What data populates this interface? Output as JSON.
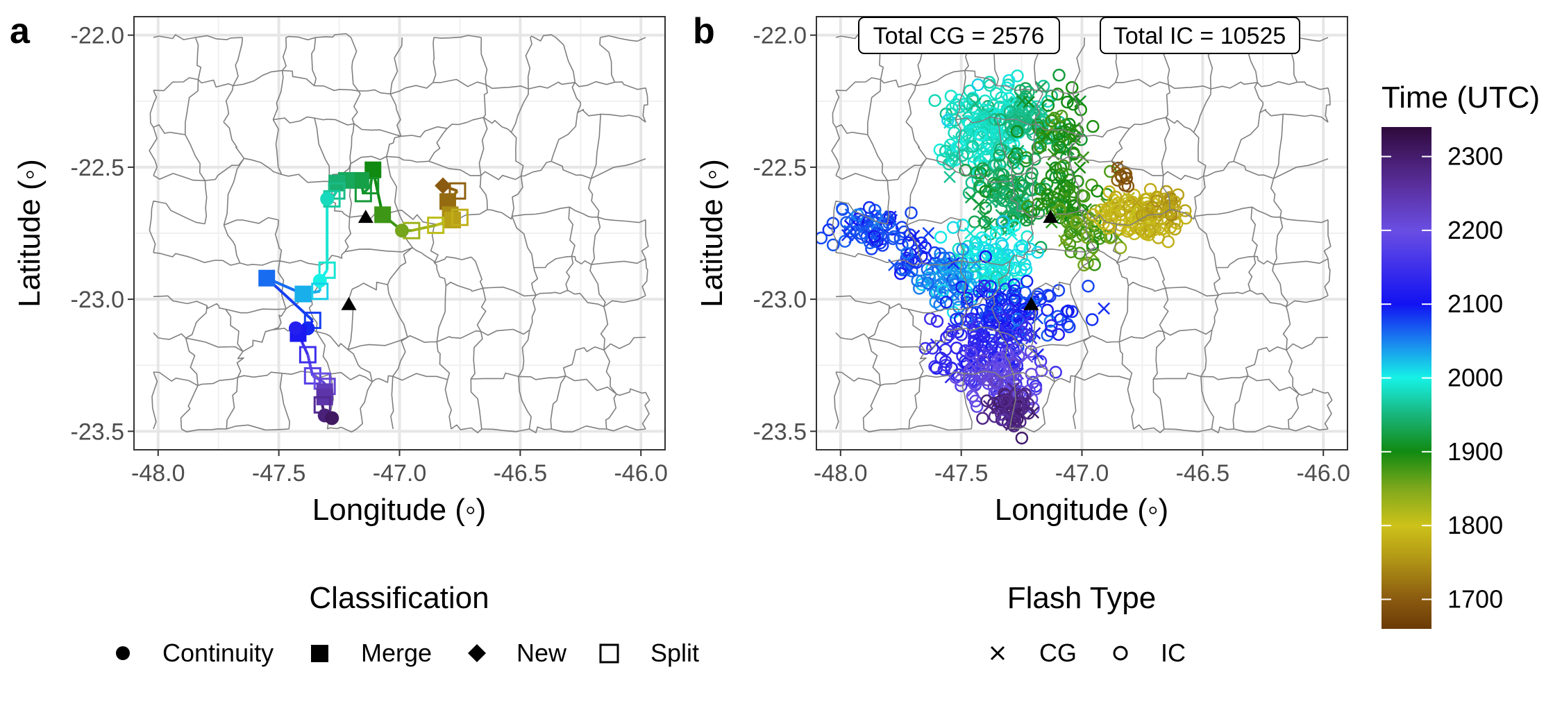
{
  "figure": {
    "panel_a_label": "a",
    "panel_b_label": "b"
  },
  "chart_data": [
    {
      "panel": "a",
      "type": "scatter",
      "xlabel": "Longitude (◦)",
      "ylabel": "Latitude (◦)",
      "xlim": [
        -48.1,
        -45.9
      ],
      "ylim": [
        -23.57,
        -21.93
      ],
      "xticks": [
        -48.0,
        -47.5,
        -47.0,
        -46.5,
        -46.0
      ],
      "yticks": [
        -22.0,
        -22.5,
        -23.0,
        -23.5
      ],
      "xtick_labels": [
        "-48.0",
        "-47.5",
        "-47.0",
        "-46.5",
        "-46.0"
      ],
      "ytick_labels": [
        "-22.0",
        "-22.5",
        "-23.0",
        "-23.5"
      ],
      "grid": true,
      "track_points": [
        {
          "lon": -46.82,
          "lat": -22.57,
          "time": 1700,
          "cls": "New"
        },
        {
          "lon": -46.76,
          "lat": -22.59,
          "time": 1705,
          "cls": "Split"
        },
        {
          "lon": -46.8,
          "lat": -22.63,
          "time": 1715,
          "cls": "Merge"
        },
        {
          "lon": -46.79,
          "lat": -22.68,
          "time": 1745,
          "cls": "Merge"
        },
        {
          "lon": -46.78,
          "lat": -22.7,
          "time": 1765,
          "cls": "Merge"
        },
        {
          "lon": -46.75,
          "lat": -22.69,
          "time": 1780,
          "cls": "Split"
        },
        {
          "lon": -46.85,
          "lat": -22.72,
          "time": 1810,
          "cls": "Split"
        },
        {
          "lon": -46.95,
          "lat": -22.74,
          "time": 1830,
          "cls": "Split"
        },
        {
          "lon": -46.99,
          "lat": -22.74,
          "time": 1855,
          "cls": "Continuity"
        },
        {
          "lon": -47.07,
          "lat": -22.68,
          "time": 1880,
          "cls": "Merge"
        },
        {
          "lon": -47.11,
          "lat": -22.51,
          "time": 1900,
          "cls": "Merge"
        },
        {
          "lon": -47.12,
          "lat": -22.57,
          "time": 1910,
          "cls": "Split"
        },
        {
          "lon": -47.15,
          "lat": -22.6,
          "time": 1918,
          "cls": "Split"
        },
        {
          "lon": -47.16,
          "lat": -22.55,
          "time": 1925,
          "cls": "Merge"
        },
        {
          "lon": -47.22,
          "lat": -22.55,
          "time": 1935,
          "cls": "Merge"
        },
        {
          "lon": -47.26,
          "lat": -22.56,
          "time": 1945,
          "cls": "Merge"
        },
        {
          "lon": -47.26,
          "lat": -22.59,
          "time": 1955,
          "cls": "Split"
        },
        {
          "lon": -47.28,
          "lat": -22.62,
          "time": 1968,
          "cls": "Split"
        },
        {
          "lon": -47.3,
          "lat": -22.62,
          "time": 1980,
          "cls": "Continuity"
        },
        {
          "lon": -47.3,
          "lat": -22.89,
          "time": 1990,
          "cls": "Split"
        },
        {
          "lon": -47.33,
          "lat": -22.93,
          "time": 2000,
          "cls": "Continuity"
        },
        {
          "lon": -47.33,
          "lat": -22.97,
          "time": 2015,
          "cls": "Split"
        },
        {
          "lon": -47.4,
          "lat": -22.98,
          "time": 2030,
          "cls": "Merge"
        },
        {
          "lon": -47.55,
          "lat": -22.92,
          "time": 2060,
          "cls": "Merge"
        },
        {
          "lon": -47.36,
          "lat": -23.08,
          "time": 2080,
          "cls": "Split"
        },
        {
          "lon": -47.38,
          "lat": -23.11,
          "time": 2090,
          "cls": "Continuity"
        },
        {
          "lon": -47.42,
          "lat": -23.13,
          "time": 2110,
          "cls": "Merge"
        },
        {
          "lon": -47.43,
          "lat": -23.11,
          "time": 2120,
          "cls": "Continuity"
        },
        {
          "lon": -47.38,
          "lat": -23.21,
          "time": 2150,
          "cls": "Split"
        },
        {
          "lon": -47.36,
          "lat": -23.29,
          "time": 2180,
          "cls": "Split"
        },
        {
          "lon": -47.32,
          "lat": -23.31,
          "time": 2200,
          "cls": "Split"
        },
        {
          "lon": -47.3,
          "lat": -23.33,
          "time": 2215,
          "cls": "Split"
        },
        {
          "lon": -47.31,
          "lat": -23.35,
          "time": 2235,
          "cls": "Merge"
        },
        {
          "lon": -47.31,
          "lat": -23.37,
          "time": 2250,
          "cls": "Merge"
        },
        {
          "lon": -47.32,
          "lat": -23.4,
          "time": 2270,
          "cls": "Split"
        },
        {
          "lon": -47.31,
          "lat": -23.44,
          "time": 2290,
          "cls": "Continuity"
        },
        {
          "lon": -47.28,
          "lat": -23.45,
          "time": 2310,
          "cls": "Continuity"
        }
      ],
      "stations": [
        {
          "lon": -47.14,
          "lat": -22.69
        },
        {
          "lon": -47.21,
          "lat": -23.02
        }
      ],
      "legend": {
        "title": "Classification",
        "entries": [
          "Continuity",
          "Merge",
          "New",
          "Split"
        ]
      }
    },
    {
      "panel": "b",
      "type": "scatter",
      "xlabel": "Longitude (◦)",
      "ylabel": "Latitude (◦)",
      "xlim": [
        -48.1,
        -45.9
      ],
      "ylim": [
        -23.57,
        -21.93
      ],
      "xticks": [
        -48.0,
        -47.5,
        -47.0,
        -46.5,
        -46.0
      ],
      "yticks": [
        -22.0,
        -22.5,
        -23.0,
        -23.5
      ],
      "xtick_labels": [
        "-48.0",
        "-47.5",
        "-47.0",
        "-46.5",
        "-46.0"
      ],
      "ytick_labels": [
        "-22.0",
        "-22.5",
        "-23.0",
        "-23.5"
      ],
      "grid": true,
      "annotations": [
        "Total CG = 2576",
        "Total IC = 10525"
      ],
      "flash_clusters": [
        {
          "lon": -47.4,
          "lat": -22.35,
          "time": 1985,
          "sx": 0.09,
          "sy": 0.08,
          "n": 160
        },
        {
          "lon": -47.22,
          "lat": -22.32,
          "time": 1955,
          "sx": 0.07,
          "sy": 0.06,
          "n": 70
        },
        {
          "lon": -47.1,
          "lat": -22.38,
          "time": 1900,
          "sx": 0.07,
          "sy": 0.08,
          "n": 60
        },
        {
          "lon": -47.3,
          "lat": -22.6,
          "time": 1930,
          "sx": 0.09,
          "sy": 0.08,
          "n": 110
        },
        {
          "lon": -47.08,
          "lat": -22.62,
          "time": 1890,
          "sx": 0.07,
          "sy": 0.06,
          "n": 60
        },
        {
          "lon": -46.97,
          "lat": -22.75,
          "time": 1865,
          "sx": 0.06,
          "sy": 0.06,
          "n": 40
        },
        {
          "lon": -46.78,
          "lat": -22.68,
          "time": 1785,
          "sx": 0.08,
          "sy": 0.05,
          "n": 90
        },
        {
          "lon": -46.66,
          "lat": -22.66,
          "time": 1770,
          "sx": 0.05,
          "sy": 0.04,
          "n": 40
        },
        {
          "lon": -46.83,
          "lat": -22.52,
          "time": 1700,
          "sx": 0.02,
          "sy": 0.02,
          "n": 10
        },
        {
          "lon": -47.38,
          "lat": -22.86,
          "time": 2000,
          "sx": 0.09,
          "sy": 0.07,
          "n": 110
        },
        {
          "lon": -47.55,
          "lat": -22.93,
          "time": 2045,
          "sx": 0.06,
          "sy": 0.05,
          "n": 60
        },
        {
          "lon": -47.88,
          "lat": -22.73,
          "time": 2075,
          "sx": 0.07,
          "sy": 0.04,
          "n": 70
        },
        {
          "lon": -47.72,
          "lat": -22.85,
          "time": 2085,
          "sx": 0.05,
          "sy": 0.04,
          "n": 30
        },
        {
          "lon": -47.3,
          "lat": -23.06,
          "time": 2085,
          "sx": 0.12,
          "sy": 0.07,
          "n": 130
        },
        {
          "lon": -47.42,
          "lat": -23.2,
          "time": 2140,
          "sx": 0.11,
          "sy": 0.07,
          "n": 120
        },
        {
          "lon": -47.32,
          "lat": -23.3,
          "time": 2200,
          "sx": 0.07,
          "sy": 0.06,
          "n": 80
        },
        {
          "lon": -47.3,
          "lat": -23.42,
          "time": 2285,
          "sx": 0.04,
          "sy": 0.04,
          "n": 60
        }
      ],
      "stations": [
        {
          "lon": -47.13,
          "lat": -22.69
        },
        {
          "lon": -47.21,
          "lat": -23.02
        }
      ],
      "legend": {
        "title": "Flash Type",
        "entries": [
          "CG",
          "IC"
        ]
      }
    }
  ],
  "colorbar": {
    "title": "Time (UTC)",
    "range": [
      1660,
      2340
    ],
    "ticks": [
      1700,
      1800,
      1900,
      2000,
      2100,
      2200,
      2300
    ],
    "tick_labels": [
      "1700",
      "1800",
      "1900",
      "2000",
      "2100",
      "2200",
      "2300"
    ],
    "color_stops": [
      {
        "t": 1660,
        "color": "#6b3a06"
      },
      {
        "t": 1700,
        "color": "#8a5a10"
      },
      {
        "t": 1760,
        "color": "#b59c16"
      },
      {
        "t": 1800,
        "color": "#cdc21a"
      },
      {
        "t": 1850,
        "color": "#7fa81c"
      },
      {
        "t": 1900,
        "color": "#118a11"
      },
      {
        "t": 1950,
        "color": "#19b57c"
      },
      {
        "t": 2000,
        "color": "#16f2e6"
      },
      {
        "t": 2050,
        "color": "#1a82ef"
      },
      {
        "t": 2100,
        "color": "#1212f2"
      },
      {
        "t": 2200,
        "color": "#6a4ee3"
      },
      {
        "t": 2260,
        "color": "#5a2f9e"
      },
      {
        "t": 2340,
        "color": "#2f0a3c"
      }
    ]
  }
}
